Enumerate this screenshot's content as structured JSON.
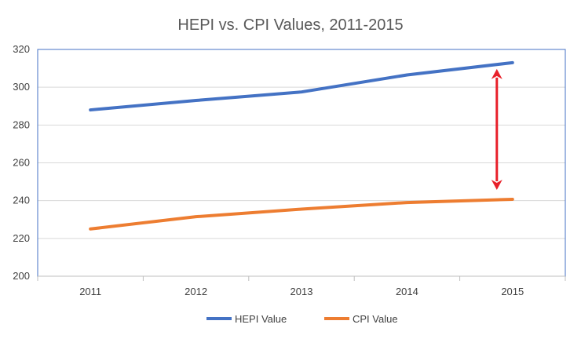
{
  "chart_data": {
    "type": "line",
    "title": "HEPI vs. CPI Values, 2011-2015",
    "xlabel": "",
    "ylabel": "",
    "categories": [
      "2011",
      "2012",
      "2013",
      "2014",
      "2015"
    ],
    "series": [
      {
        "name": "HEPI Value",
        "color": "#4472C4",
        "values": [
          288,
          293,
          297.5,
          306.5,
          313
        ]
      },
      {
        "name": "CPI Value",
        "color": "#ED7D31",
        "values": [
          225,
          231.5,
          235.5,
          239,
          240.7
        ]
      }
    ],
    "ylim": [
      200,
      320
    ],
    "yticks": [
      200,
      220,
      240,
      260,
      280,
      300,
      320
    ],
    "grid": true,
    "legend": "bottom",
    "annotation": {
      "type": "double-arrow",
      "category": "2015",
      "between": [
        313,
        240.7
      ],
      "color": "#E8202A"
    }
  }
}
